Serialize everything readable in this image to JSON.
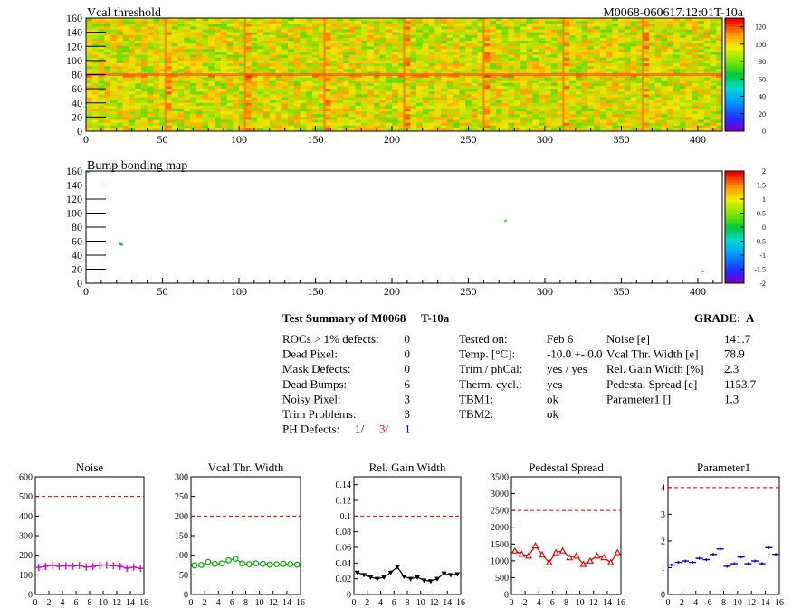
{
  "header": {
    "title": "Vcal threshold",
    "module_id": "M0068-060617.12:01T-10a"
  },
  "map_axis": {
    "x_ticks": [
      "0",
      "50",
      "100",
      "150",
      "200",
      "250",
      "300",
      "350",
      "400"
    ],
    "y_ticks": [
      "0",
      "20",
      "40",
      "60",
      "80",
      "100",
      "120",
      "140",
      "160"
    ]
  },
  "summary": {
    "title": "Test Summary of M0068",
    "tag": "T-10a",
    "grade_label": "GRADE:",
    "grade": "A",
    "defects": [
      {
        "label": "ROCs > 1% defects:",
        "value": "0"
      },
      {
        "label": "Dead Pixel:",
        "value": "0"
      },
      {
        "label": "Mask Defects:",
        "value": "0"
      },
      {
        "label": "Dead Bumps:",
        "value": "6"
      },
      {
        "label": "Noisy Pixel:",
        "value": "3"
      },
      {
        "label": "Trim Problems:",
        "value": "3"
      }
    ],
    "ph_label": "PH Defects:",
    "ph_values": [
      "1/",
      "3/",
      "1"
    ],
    "ph_colors": [
      "#000000",
      "#ff0000",
      "#0000ff"
    ],
    "conditions": [
      {
        "label": "Tested on:",
        "value": "Feb 6"
      },
      {
        "label": "Temp. [°C]:",
        "value": "-10.0 +- 0.0"
      },
      {
        "label": "Trim / phCal:",
        "value": "yes / yes"
      },
      {
        "label": "Therm. cycl.:",
        "value": "yes"
      },
      {
        "label": "TBM1:",
        "value": "ok"
      },
      {
        "label": "TBM2:",
        "value": "ok"
      }
    ],
    "results": [
      {
        "label": "Noise [e]",
        "value": "141.7"
      },
      {
        "label": "Vcal Thr. Width [e]",
        "value": "78.9"
      },
      {
        "label": "Rel. Gain Width [%]",
        "value": "2.3"
      },
      {
        "label": "Pedestal Spread [e]",
        "value": "1153.7"
      },
      {
        "label": "Parameter1 []",
        "value": "1.3"
      }
    ]
  },
  "chart_data": [
    {
      "type": "heatmap",
      "title": "Vcal threshold",
      "x_range": [
        0,
        416
      ],
      "y_range": [
        0,
        160
      ],
      "x_ticks": [
        0,
        50,
        100,
        150,
        200,
        250,
        300,
        350,
        400
      ],
      "y_ticks": [
        0,
        20,
        40,
        60,
        80,
        100,
        120,
        140,
        160
      ],
      "z_range": [
        0,
        130
      ],
      "colorbar_ticks": [
        "0",
        "20",
        "40",
        "60",
        "80",
        "100",
        "120"
      ],
      "typical_value": 110,
      "roc_boundaries_x": [
        52,
        104,
        156,
        208,
        260,
        312,
        364
      ],
      "roc_boundary_y": 80
    },
    {
      "type": "heatmap",
      "title": "Bump bonding map",
      "x_range": [
        0,
        416
      ],
      "y_range": [
        0,
        160
      ],
      "x_ticks": [
        0,
        50,
        100,
        150,
        200,
        250,
        300,
        350,
        400
      ],
      "y_ticks": [
        0,
        20,
        40,
        60,
        80,
        100,
        120,
        140,
        160
      ],
      "z_range": [
        -2,
        2
      ],
      "colorbar_ticks": [
        "-2",
        "-1.5",
        "-1",
        "-0.5",
        "0",
        "0.5",
        "1",
        "1.5",
        "2"
      ],
      "hits": [
        {
          "x": 22,
          "y": 56,
          "z": 0
        },
        {
          "x": 23,
          "y": 55,
          "z": 0
        },
        {
          "x": 274,
          "y": 89,
          "z": 0.3
        },
        {
          "x": 403,
          "y": 17,
          "z": 0.3
        },
        {
          "x": 1,
          "y": 159,
          "z": 0
        }
      ]
    },
    {
      "type": "line",
      "title": "Noise",
      "x": [
        0,
        1,
        2,
        3,
        4,
        5,
        6,
        7,
        8,
        9,
        10,
        11,
        12,
        13,
        14,
        15
      ],
      "values": [
        138,
        143,
        148,
        143,
        146,
        144,
        148,
        139,
        142,
        148,
        150,
        146,
        143,
        134,
        139,
        133
      ],
      "xlim": [
        0,
        16
      ],
      "ylim": [
        0,
        600
      ],
      "x_ticks": [
        0,
        2,
        4,
        6,
        8,
        10,
        12,
        14,
        16
      ],
      "y_ticks": [
        0,
        100,
        200,
        300,
        400,
        500,
        600
      ],
      "threshold": 500,
      "marker": "plus",
      "color": "#cc00cc"
    },
    {
      "type": "line",
      "title": "Vcal Thr. Width",
      "x": [
        0,
        1,
        2,
        3,
        4,
        5,
        6,
        7,
        8,
        9,
        10,
        11,
        12,
        13,
        14,
        15
      ],
      "values": [
        74,
        75,
        83,
        78,
        79,
        87,
        91,
        79,
        77,
        79,
        78,
        76,
        77,
        78,
        77,
        76
      ],
      "xlim": [
        0,
        16
      ],
      "ylim": [
        0,
        300
      ],
      "x_ticks": [
        0,
        2,
        4,
        6,
        8,
        10,
        12,
        14,
        16
      ],
      "y_ticks": [
        0,
        50,
        100,
        150,
        200,
        250,
        300
      ],
      "threshold": 200,
      "marker": "circle",
      "color": "#00aa00"
    },
    {
      "type": "line",
      "title": "Rel. Gain Width",
      "x": [
        0,
        1,
        2,
        3,
        4,
        5,
        6,
        7,
        8,
        9,
        10,
        11,
        12,
        13,
        14,
        15
      ],
      "values": [
        0.028,
        0.025,
        0.022,
        0.02,
        0.022,
        0.028,
        0.035,
        0.023,
        0.02,
        0.022,
        0.018,
        0.017,
        0.02,
        0.027,
        0.025,
        0.026
      ],
      "xlim": [
        0,
        16
      ],
      "ylim": [
        0,
        0.15
      ],
      "x_ticks": [
        0,
        2,
        4,
        6,
        8,
        10,
        12,
        14,
        16
      ],
      "y_ticks": [
        0,
        0.02,
        0.04,
        0.06,
        0.08,
        0.1,
        0.12,
        0.14
      ],
      "y_tick_labels": [
        "0",
        "0.02",
        "0.04",
        "0.06",
        "0.08",
        "0.1",
        "0.12",
        "0.14"
      ],
      "threshold": 0.1,
      "marker": "triangle-down",
      "color": "#000000"
    },
    {
      "type": "line",
      "title": "Pedestal Spread",
      "x": [
        0,
        1,
        2,
        3,
        4,
        5,
        6,
        7,
        8,
        9,
        10,
        11,
        12,
        13,
        14,
        15
      ],
      "values": [
        1300,
        1200,
        1150,
        1450,
        1180,
        950,
        1250,
        1300,
        1100,
        1150,
        900,
        1000,
        1150,
        1100,
        950,
        1250
      ],
      "xlim": [
        0,
        16
      ],
      "ylim": [
        0,
        3500
      ],
      "x_ticks": [
        0,
        2,
        4,
        6,
        8,
        10,
        12,
        14,
        16
      ],
      "y_ticks": [
        0,
        500,
        1000,
        1500,
        2000,
        2500,
        3000,
        3500
      ],
      "threshold": 2500,
      "marker": "triangle-up",
      "color": "#dd0000"
    },
    {
      "type": "scatter",
      "title": "Parameter1",
      "x": [
        0,
        1,
        2,
        3,
        4,
        5,
        6,
        7,
        8,
        9,
        10,
        11,
        12,
        13,
        14,
        15
      ],
      "values": [
        1.1,
        1.2,
        1.25,
        1.2,
        1.35,
        1.3,
        1.5,
        1.7,
        1.05,
        1.15,
        1.4,
        1.15,
        1.25,
        1.15,
        1.75,
        1.5
      ],
      "xlim": [
        0,
        16
      ],
      "ylim": [
        0,
        4.4
      ],
      "x_ticks": [
        0,
        2,
        4,
        6,
        8,
        10,
        12,
        14,
        16
      ],
      "y_ticks": [
        0,
        1,
        2,
        3,
        4
      ],
      "threshold": 4,
      "marker": "hbar",
      "color": "#0000cc"
    }
  ]
}
